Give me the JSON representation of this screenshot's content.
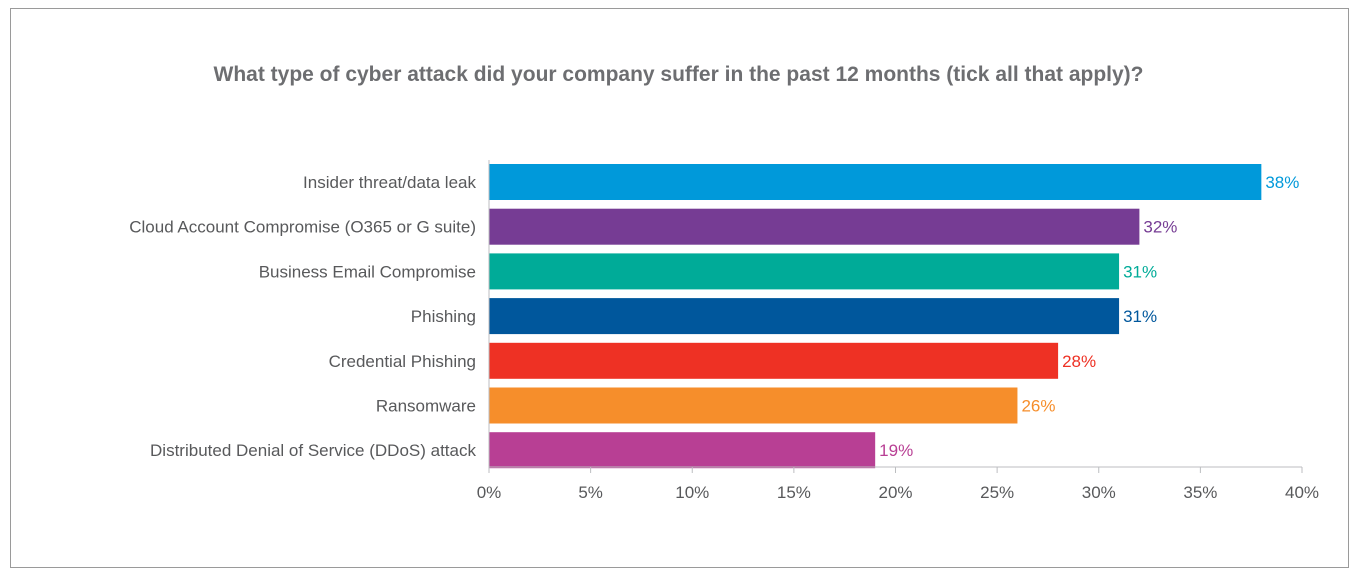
{
  "chart_data": {
    "type": "bar",
    "orientation": "horizontal",
    "title": "What type of cyber attack did your company suffer in the past 12 months (tick all that apply)?",
    "categories": [
      "Insider threat/data leak",
      "Cloud Account Compromise (O365 or G suite)",
      "Business Email Compromise",
      "Phishing",
      "Credential Phishing",
      "Ransomware",
      "Distributed Denial of Service (DDoS) attack"
    ],
    "values": [
      38,
      32,
      31,
      31,
      28,
      26,
      19
    ],
    "value_labels": [
      "38%",
      "32%",
      "31%",
      "31%",
      "28%",
      "26%",
      "19%"
    ],
    "colors": [
      "#0099da",
      "#763c94",
      "#00ab98",
      "#00579c",
      "#ee3124",
      "#f68e2b",
      "#b83f94"
    ],
    "x_ticks": [
      0,
      5,
      10,
      15,
      20,
      25,
      30,
      35,
      40
    ],
    "x_tick_labels": [
      "0%",
      "5%",
      "10%",
      "15%",
      "20%",
      "25%",
      "30%",
      "35%",
      "40%"
    ],
    "xlim": [
      0,
      40
    ],
    "grid": false,
    "legend": "none"
  }
}
